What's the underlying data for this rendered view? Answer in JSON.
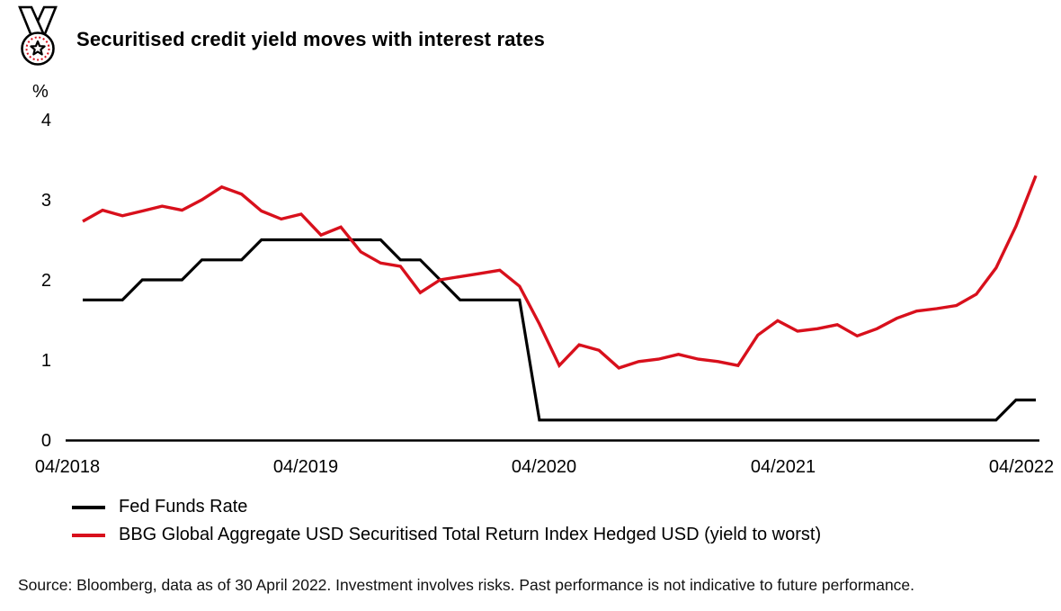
{
  "header": {
    "title": "Securitised credit yield moves with interest rates"
  },
  "chart_data": {
    "type": "line",
    "title": "Securitised credit yield moves with interest rates",
    "unit_label": "%",
    "ylim": [
      0,
      4
    ],
    "grid": false,
    "legend_position": "bottom-left",
    "y_ticks": [
      "4",
      "3",
      "2",
      "1",
      "0"
    ],
    "x_ticks": [
      "04/2018",
      "04/2019",
      "04/2020",
      "04/2021",
      "04/2022"
    ],
    "x": [
      "04/2018",
      "05/2018",
      "06/2018",
      "07/2018",
      "08/2018",
      "09/2018",
      "10/2018",
      "11/2018",
      "12/2018",
      "01/2019",
      "02/2019",
      "03/2019",
      "04/2019",
      "05/2019",
      "06/2019",
      "07/2019",
      "08/2019",
      "09/2019",
      "10/2019",
      "11/2019",
      "12/2019",
      "01/2020",
      "02/2020",
      "03/2020",
      "04/2020",
      "05/2020",
      "06/2020",
      "07/2020",
      "08/2020",
      "09/2020",
      "10/2020",
      "11/2020",
      "12/2020",
      "01/2021",
      "02/2021",
      "03/2021",
      "04/2021",
      "05/2021",
      "06/2021",
      "07/2021",
      "08/2021",
      "09/2021",
      "10/2021",
      "11/2021",
      "12/2021",
      "01/2022",
      "02/2022",
      "03/2022",
      "04/2022"
    ],
    "series": [
      {
        "name": "Fed Funds Rate",
        "color": "#000000",
        "values": [
          1.75,
          1.75,
          1.75,
          2.0,
          2.0,
          2.0,
          2.25,
          2.25,
          2.25,
          2.5,
          2.5,
          2.5,
          2.5,
          2.5,
          2.5,
          2.5,
          2.25,
          2.25,
          2.0,
          1.75,
          1.75,
          1.75,
          1.75,
          0.25,
          0.25,
          0.25,
          0.25,
          0.25,
          0.25,
          0.25,
          0.25,
          0.25,
          0.25,
          0.25,
          0.25,
          0.25,
          0.25,
          0.25,
          0.25,
          0.25,
          0.25,
          0.25,
          0.25,
          0.25,
          0.25,
          0.25,
          0.25,
          0.5,
          0.5
        ]
      },
      {
        "name": "BBG Global Aggregate USD Securitised Total Return Index Hedged USD (yield to worst)",
        "color": "#d8101c",
        "values": [
          2.73,
          2.87,
          2.8,
          2.86,
          2.92,
          2.87,
          3.0,
          3.16,
          3.07,
          2.86,
          2.76,
          2.82,
          2.56,
          2.66,
          2.35,
          2.21,
          2.17,
          1.84,
          2.0,
          2.04,
          2.08,
          2.12,
          1.92,
          1.45,
          0.93,
          1.19,
          1.12,
          0.9,
          0.98,
          1.01,
          1.07,
          1.01,
          0.98,
          0.93,
          1.31,
          1.49,
          1.36,
          1.39,
          1.44,
          1.3,
          1.39,
          1.52,
          1.61,
          1.64,
          1.68,
          1.82,
          2.15,
          2.67,
          3.3
        ]
      }
    ]
  },
  "footer": {
    "source_text": "Source: Bloomberg, data as of 30 April 2022. Investment involves risks. Past performance is not indicative to future performance."
  }
}
